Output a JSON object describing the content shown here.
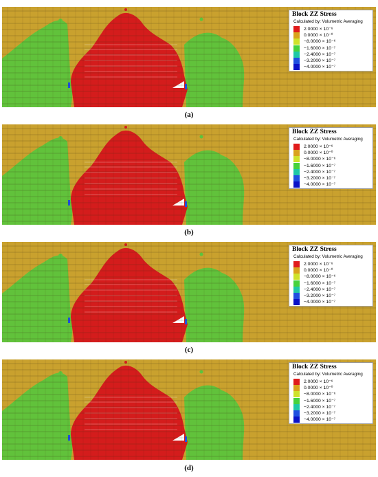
{
  "legend": {
    "title": "Block ZZ Stress",
    "subtitle": "Calculated by: Volumetric Averaging",
    "entries": [
      {
        "color": "#e01b1b",
        "label": "2.0000 × 10⁻⁶"
      },
      {
        "color": "#d9a21c",
        "label": "0.0000 × 10⁻⁰"
      },
      {
        "color": "#cfe22a",
        "label": "−8.0000 × 10⁻⁶"
      },
      {
        "color": "#46d23c",
        "label": "−1.6000 × 10⁻⁷"
      },
      {
        "color": "#1ec8a6",
        "label": "−2.4000 × 10⁻⁷"
      },
      {
        "color": "#1f4fe0",
        "label": "−3.2000 × 10⁻⁷"
      },
      {
        "color": "#0a12c8",
        "label": "−4.0000 × 10⁻⁷"
      }
    ]
  },
  "panels": [
    {
      "caption": "(a)"
    },
    {
      "caption": "(b)"
    },
    {
      "caption": "(c)"
    },
    {
      "caption": "(d)"
    }
  ],
  "colors": {
    "background_field": "#c9a12e",
    "compression_zone": "#d41c1c",
    "transition_zone": "#5cc43c",
    "mesh_line": "#3a2a10"
  }
}
